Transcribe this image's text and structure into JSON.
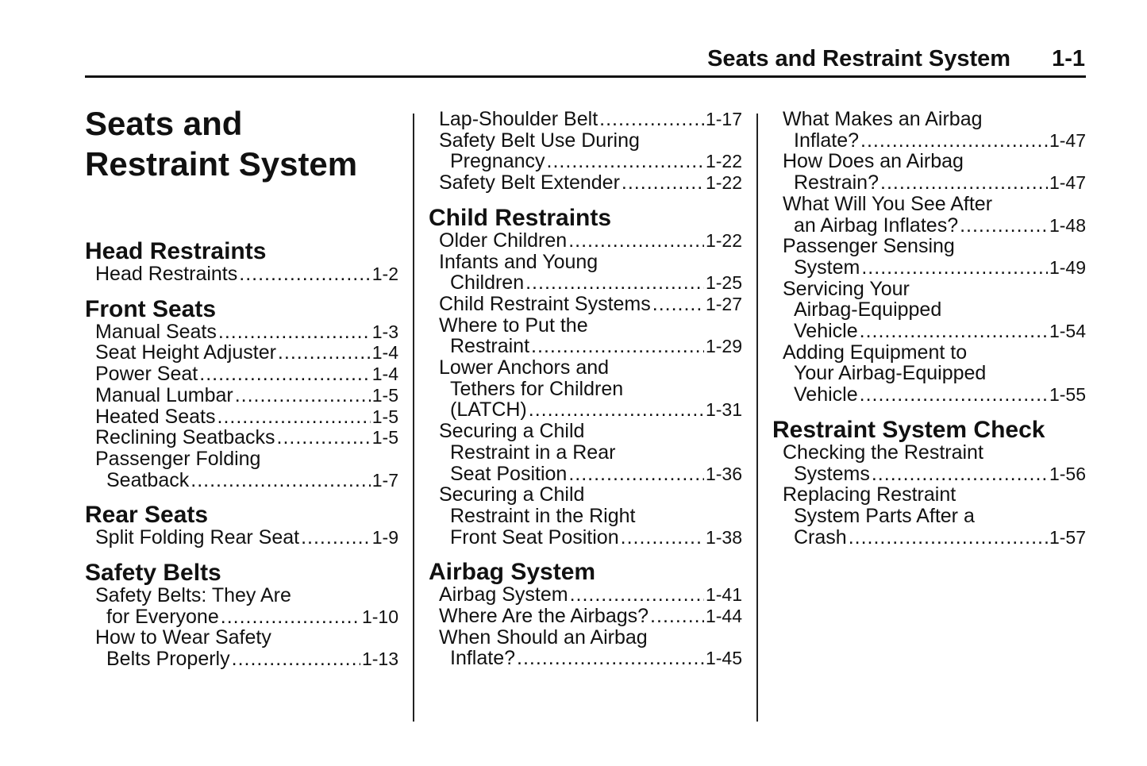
{
  "header": {
    "section": "Seats and Restraint System",
    "page": "1-1"
  },
  "columns": [
    {
      "title": [
        "Seats and",
        "Restraint System"
      ],
      "sections": [
        {
          "heading": "Head Restraints",
          "entries": [
            {
              "lines": [
                "Head Restraints"
              ],
              "page": "1-2"
            }
          ]
        },
        {
          "heading": "Front Seats",
          "entries": [
            {
              "lines": [
                "Manual Seats"
              ],
              "page": "1-3"
            },
            {
              "lines": [
                "Seat Height Adjuster"
              ],
              "page": "1-4"
            },
            {
              "lines": [
                "Power Seat"
              ],
              "page": "1-4"
            },
            {
              "lines": [
                "Manual Lumbar"
              ],
              "page": "1-5"
            },
            {
              "lines": [
                "Heated Seats"
              ],
              "page": "1-5"
            },
            {
              "lines": [
                "Reclining Seatbacks"
              ],
              "page": "1-5"
            },
            {
              "lines": [
                "Passenger Folding",
                "Seatback"
              ],
              "page": "1-7"
            }
          ]
        },
        {
          "heading": "Rear Seats",
          "entries": [
            {
              "lines": [
                "Split Folding Rear Seat"
              ],
              "page": "1-9"
            }
          ]
        },
        {
          "heading": "Safety Belts",
          "entries": [
            {
              "lines": [
                "Safety Belts: They Are",
                "for Everyone"
              ],
              "page": "1-10"
            },
            {
              "lines": [
                "How to Wear Safety",
                "Belts Properly"
              ],
              "page": "1-13"
            }
          ]
        }
      ]
    },
    {
      "sections": [
        {
          "heading": null,
          "entries": [
            {
              "lines": [
                "Lap-Shoulder Belt"
              ],
              "page": "1-17"
            },
            {
              "lines": [
                "Safety Belt Use During",
                "Pregnancy"
              ],
              "page": "1-22"
            },
            {
              "lines": [
                "Safety Belt Extender"
              ],
              "page": "1-22"
            }
          ]
        },
        {
          "heading": "Child Restraints",
          "entries": [
            {
              "lines": [
                "Older Children"
              ],
              "page": "1-22"
            },
            {
              "lines": [
                "Infants and Young",
                "Children"
              ],
              "page": "1-25"
            },
            {
              "lines": [
                "Child Restraint Systems"
              ],
              "page": "1-27"
            },
            {
              "lines": [
                "Where to Put the",
                "Restraint"
              ],
              "page": "1-29"
            },
            {
              "lines": [
                "Lower Anchors and",
                "Tethers for Children",
                "(LATCH)"
              ],
              "page": "1-31"
            },
            {
              "lines": [
                "Securing a Child",
                "Restraint in a Rear",
                "Seat Position"
              ],
              "page": "1-36"
            },
            {
              "lines": [
                "Securing a Child",
                "Restraint in the Right",
                "Front Seat Position"
              ],
              "page": "1-38"
            }
          ]
        },
        {
          "heading": "Airbag System",
          "entries": [
            {
              "lines": [
                "Airbag System"
              ],
              "page": "1-41"
            },
            {
              "lines": [
                "Where Are the Airbags?"
              ],
              "page": "1-44"
            },
            {
              "lines": [
                "When Should an Airbag",
                "Inflate?"
              ],
              "page": "1-45"
            }
          ]
        }
      ]
    },
    {
      "sections": [
        {
          "heading": null,
          "entries": [
            {
              "lines": [
                "What Makes an Airbag",
                "Inflate?"
              ],
              "page": "1-47"
            },
            {
              "lines": [
                "How Does an Airbag",
                "Restrain?"
              ],
              "page": "1-47"
            },
            {
              "lines": [
                "What Will You See After",
                "an Airbag Inflates?"
              ],
              "page": "1-48"
            },
            {
              "lines": [
                "Passenger Sensing",
                "System"
              ],
              "page": "1-49"
            },
            {
              "lines": [
                "Servicing Your",
                "Airbag-Equipped",
                "Vehicle"
              ],
              "page": "1-54"
            },
            {
              "lines": [
                "Adding Equipment to",
                "Your Airbag-Equipped",
                "Vehicle"
              ],
              "page": "1-55"
            }
          ]
        },
        {
          "heading": "Restraint System Check",
          "entries": [
            {
              "lines": [
                "Checking the Restraint",
                "Systems"
              ],
              "page": "1-56"
            },
            {
              "lines": [
                "Replacing Restraint",
                "System Parts After a",
                "Crash"
              ],
              "page": "1-57"
            }
          ]
        }
      ]
    }
  ]
}
